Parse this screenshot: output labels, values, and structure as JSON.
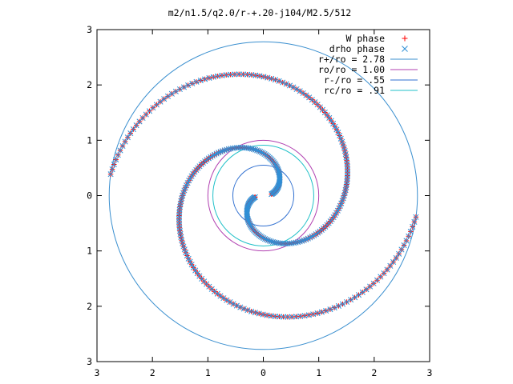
{
  "chart_data": {
    "type": "scatter",
    "title": "m2/n1.5/q2.0/r-+.20-j104/M2.5/512",
    "xlabel": "",
    "ylabel": "",
    "xlim": [
      -3,
      3
    ],
    "ylim": [
      -3,
      3
    ],
    "x_ticks": [
      -3,
      -2,
      -1,
      0,
      1,
      2,
      3
    ],
    "y_ticks": [
      -3,
      -2,
      -1,
      0,
      1,
      2,
      3
    ],
    "x_tick_labels": [
      "3",
      "2",
      "1",
      "0",
      "1",
      "2",
      "3"
    ],
    "y_tick_labels": [
      "3",
      "2",
      "1",
      "0",
      "1",
      "2",
      "3"
    ],
    "grid": false,
    "legend_position": "top-right",
    "series": [
      {
        "name": "W phase",
        "kind": "points",
        "marker": "plus",
        "color": "#ff0000",
        "arms": [
          {
            "r_start": 0.15,
            "r_end": 2.78,
            "theta_start_deg": -170,
            "turns": 0.95,
            "n": 180
          },
          {
            "r_start": 0.15,
            "r_end": 2.78,
            "theta_start_deg": 10,
            "turns": 0.95,
            "n": 180
          }
        ]
      },
      {
        "name": "drho phase",
        "kind": "points",
        "marker": "cross",
        "color": "#2f8fd6",
        "arms": [
          {
            "r_start": 0.15,
            "r_end": 2.78,
            "theta_start_deg": -170,
            "turns": 0.95,
            "n": 180
          },
          {
            "r_start": 0.15,
            "r_end": 2.78,
            "theta_start_deg": 10,
            "turns": 0.95,
            "n": 180
          }
        ]
      },
      {
        "name": "r+/ro = 2.78",
        "kind": "circle",
        "radius": 2.78,
        "color": "#3a8fcf"
      },
      {
        "name": "ro/ro = 1.00",
        "kind": "circle",
        "radius": 1.0,
        "color": "#b03fb0"
      },
      {
        "name": "r-/ro = .55",
        "kind": "circle",
        "radius": 0.55,
        "color": "#2f6fd0"
      },
      {
        "name": "rc/ro = .91",
        "kind": "circle",
        "radius": 0.91,
        "color": "#20c0c8"
      }
    ]
  }
}
